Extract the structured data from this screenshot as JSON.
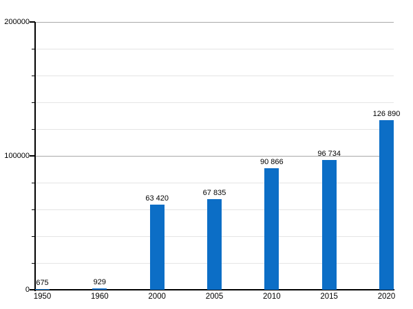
{
  "chart_data": {
    "type": "bar",
    "title": "",
    "xlabel": "",
    "ylabel": "",
    "categories": [
      "1950",
      "1960",
      "2000",
      "2005",
      "2010",
      "2015",
      "2020"
    ],
    "values": [
      675,
      929,
      63420,
      67835,
      90866,
      96734,
      126890
    ],
    "value_labels": [
      "675",
      "929",
      "63 420",
      "67 835",
      "90 866",
      "96 734",
      "126 890"
    ],
    "ylim": [
      0,
      200000
    ],
    "y_major_ticks": [
      0,
      100000,
      200000
    ],
    "y_major_tick_labels": [
      "0",
      "100000",
      "200000"
    ],
    "y_minor_interval": 20000,
    "grid": "on",
    "legend": "none",
    "bar_color": "#0c6ec6",
    "minor_grid_color": "#e4e4e4",
    "major_grid_color": "#a8a8a8",
    "axis_color": "#000000",
    "text_color": "#000000"
  }
}
